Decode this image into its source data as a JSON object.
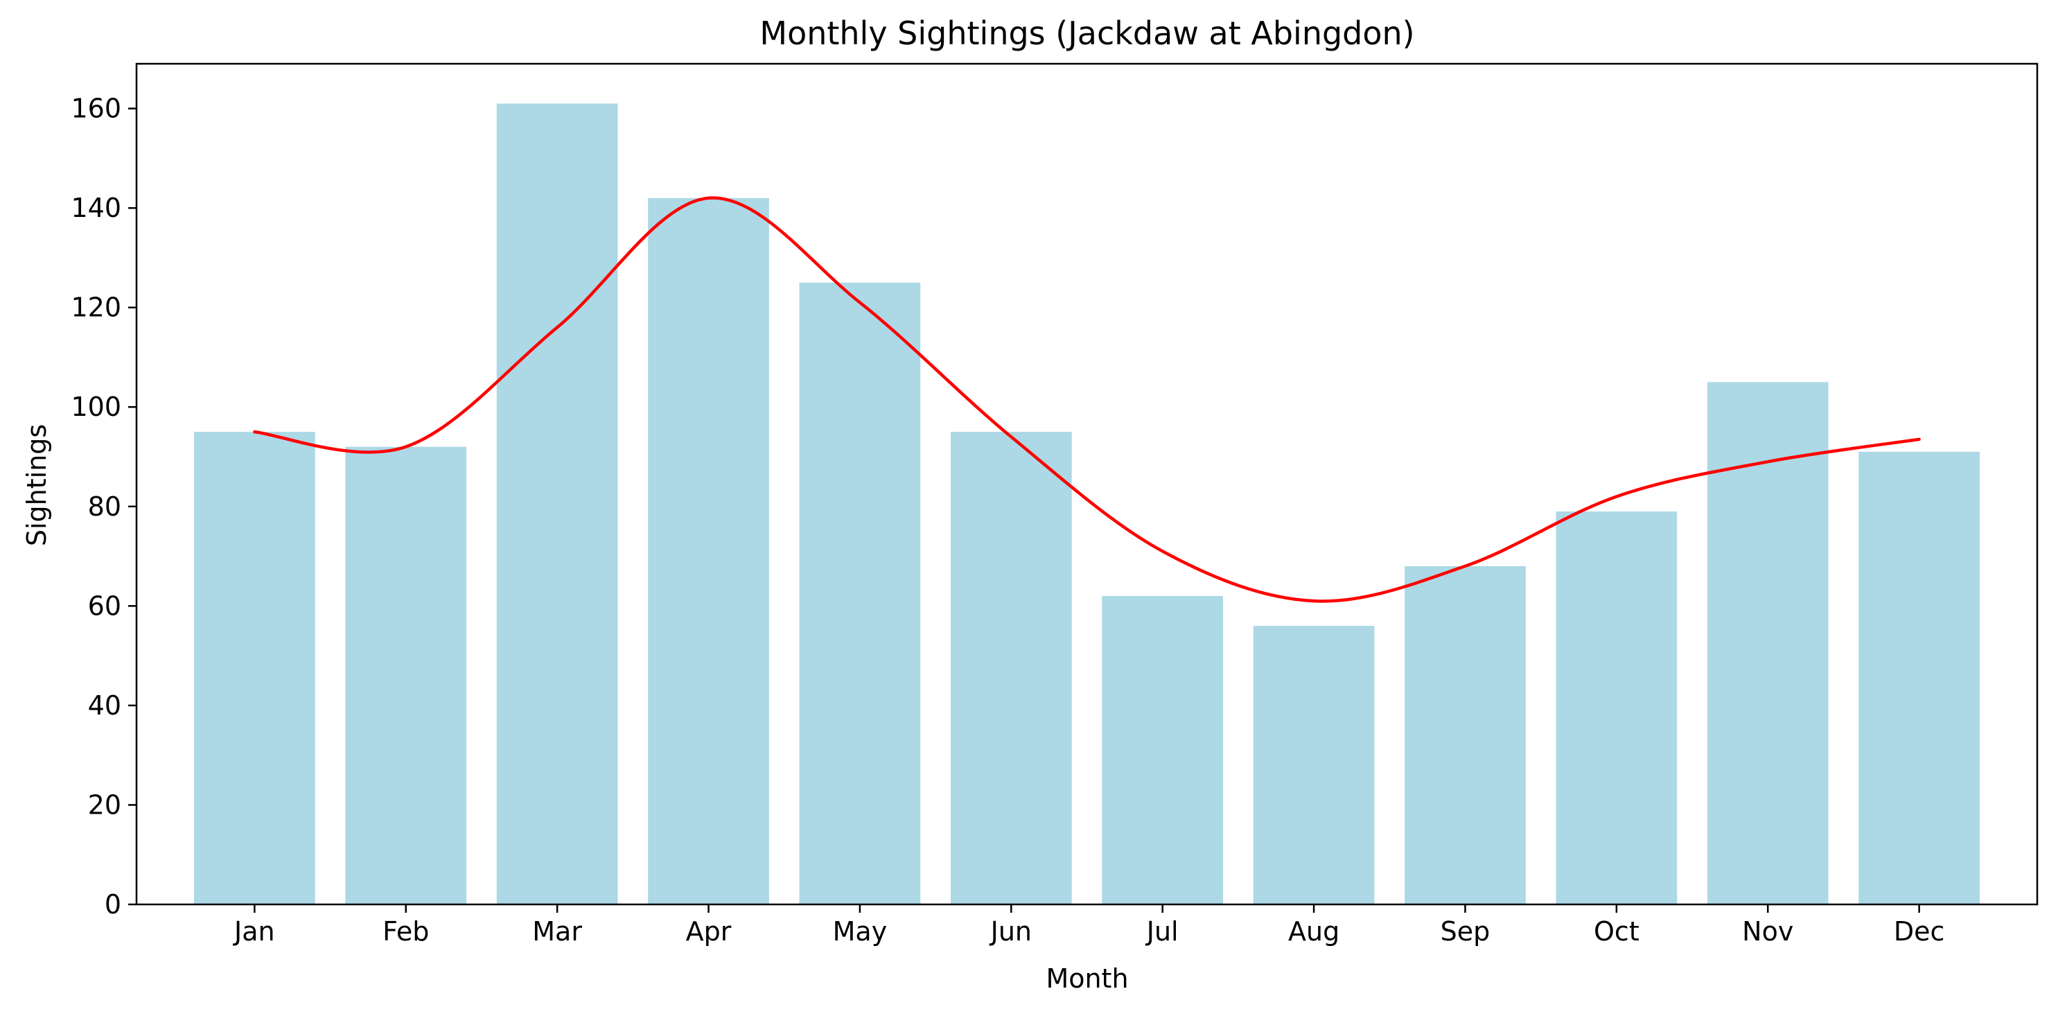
{
  "chart_data": {
    "type": "bar",
    "title": "Monthly Sightings (Jackdaw at Abingdon)",
    "xlabel": "Month",
    "ylabel": "Sightings",
    "categories": [
      "Jan",
      "Feb",
      "Mar",
      "Apr",
      "May",
      "Jun",
      "Jul",
      "Aug",
      "Sep",
      "Oct",
      "Nov",
      "Dec"
    ],
    "values": [
      95,
      92,
      161,
      142,
      125,
      95,
      62,
      56,
      68,
      79,
      105,
      91
    ],
    "trend": [
      95,
      92,
      116,
      142,
      121,
      94,
      71,
      61,
      68,
      82,
      89,
      93.5
    ],
    "ylim": [
      0,
      169
    ],
    "yticks": [
      0,
      20,
      40,
      60,
      80,
      100,
      120,
      140,
      160
    ],
    "grid": false,
    "colors": {
      "bar": "#add8e6",
      "trend": "#ff0000",
      "axis": "#000000"
    }
  }
}
